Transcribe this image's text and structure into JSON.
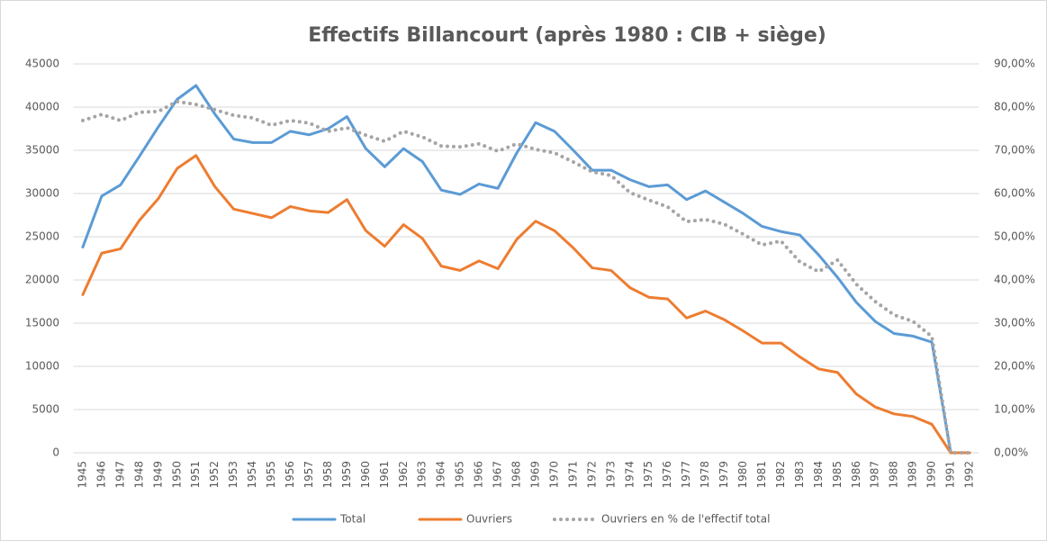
{
  "chart_data": {
    "type": "line",
    "title": "Effectifs Billancourt (après 1980 : CIB + siège)",
    "categories": [
      "1945",
      "1946",
      "1947",
      "1948",
      "1949",
      "1950",
      "1951",
      "1952",
      "1953",
      "1954",
      "1955",
      "1956",
      "1957",
      "1958",
      "1959",
      "1960",
      "1961",
      "1962",
      "1963",
      "1964",
      "1965",
      "1966",
      "1967",
      "1968",
      "1969",
      "1970",
      "1971",
      "1972",
      "1973",
      "1974",
      "1975",
      "1976",
      "1977",
      "1978",
      "1979",
      "1980",
      "1981",
      "1982",
      "1983",
      "1984",
      "1985",
      "1986",
      "1987",
      "1988",
      "1989",
      "1990",
      "1991",
      "1992"
    ],
    "series": [
      {
        "name": "Total",
        "color": "#5b9bd5",
        "values": [
          23800,
          29700,
          31000,
          34300,
          37700,
          40900,
          42500,
          39200,
          36300,
          35900,
          35900,
          37200,
          36800,
          37500,
          38900,
          35200,
          33100,
          35200,
          33700,
          30400,
          29900,
          31100,
          30600,
          34700,
          38200,
          37200,
          35000,
          32700,
          32700,
          31600,
          30800,
          31000,
          29300,
          30300,
          29000,
          27700,
          26200,
          25600,
          25200,
          22900,
          20300,
          17400,
          15200,
          13800,
          13500,
          12800,
          0,
          0
        ]
      },
      {
        "name": "Ouvriers",
        "color": "#ed7d31",
        "values": [
          18300,
          23100,
          23600,
          26900,
          29400,
          32900,
          34400,
          30800,
          28200,
          27700,
          27200,
          28500,
          28000,
          27800,
          29300,
          25700,
          23900,
          26400,
          24800,
          21600,
          21100,
          22200,
          21300,
          24700,
          26800,
          25700,
          23700,
          21400,
          21100,
          19100,
          18000,
          17800,
          15600,
          16400,
          15400,
          14100,
          12700,
          12700,
          11100,
          9700,
          9300,
          6800,
          5300,
          4500,
          4200,
          3300,
          0,
          0
        ]
      },
      {
        "name": "Ouvriers en % de l'effectif total",
        "color": "#a5a5a5",
        "dotted": true,
        "axis": "y2",
        "values": [
          76.9,
          78.3,
          76.9,
          78.8,
          79,
          81.3,
          80.6,
          79.4,
          78.1,
          77.5,
          75.8,
          76.9,
          76.3,
          74.4,
          75.2,
          73.5,
          72.1,
          74.4,
          73.1,
          71,
          70.8,
          71.5,
          69.8,
          71.5,
          70.2,
          69.4,
          67.3,
          65,
          64.2,
          60.2,
          58.5,
          56.9,
          53.5,
          54,
          52.9,
          50.6,
          48.1,
          49,
          44.2,
          41.9,
          44.6,
          39,
          35,
          31.9,
          30.4,
          26.9,
          0,
          0
        ]
      }
    ],
    "ylim": [
      0,
      45000
    ],
    "yticks": [
      0,
      5000,
      10000,
      15000,
      20000,
      25000,
      30000,
      35000,
      40000,
      45000
    ],
    "y2lim": [
      0,
      90
    ],
    "y2ticks": [
      {
        "value": 0,
        "label": "0,00%"
      },
      {
        "value": 10,
        "label": "10,00%"
      },
      {
        "value": 20,
        "label": "20,00%"
      },
      {
        "value": 30,
        "label": "30,00%"
      },
      {
        "value": 40,
        "label": "40,00%"
      },
      {
        "value": 50,
        "label": "50,00%"
      },
      {
        "value": 60,
        "label": "60,00%"
      },
      {
        "value": 70,
        "label": "70,00%"
      },
      {
        "value": 80,
        "label": "80,00%"
      },
      {
        "value": 90,
        "label": "90,00%"
      }
    ],
    "legend": "bottom"
  }
}
